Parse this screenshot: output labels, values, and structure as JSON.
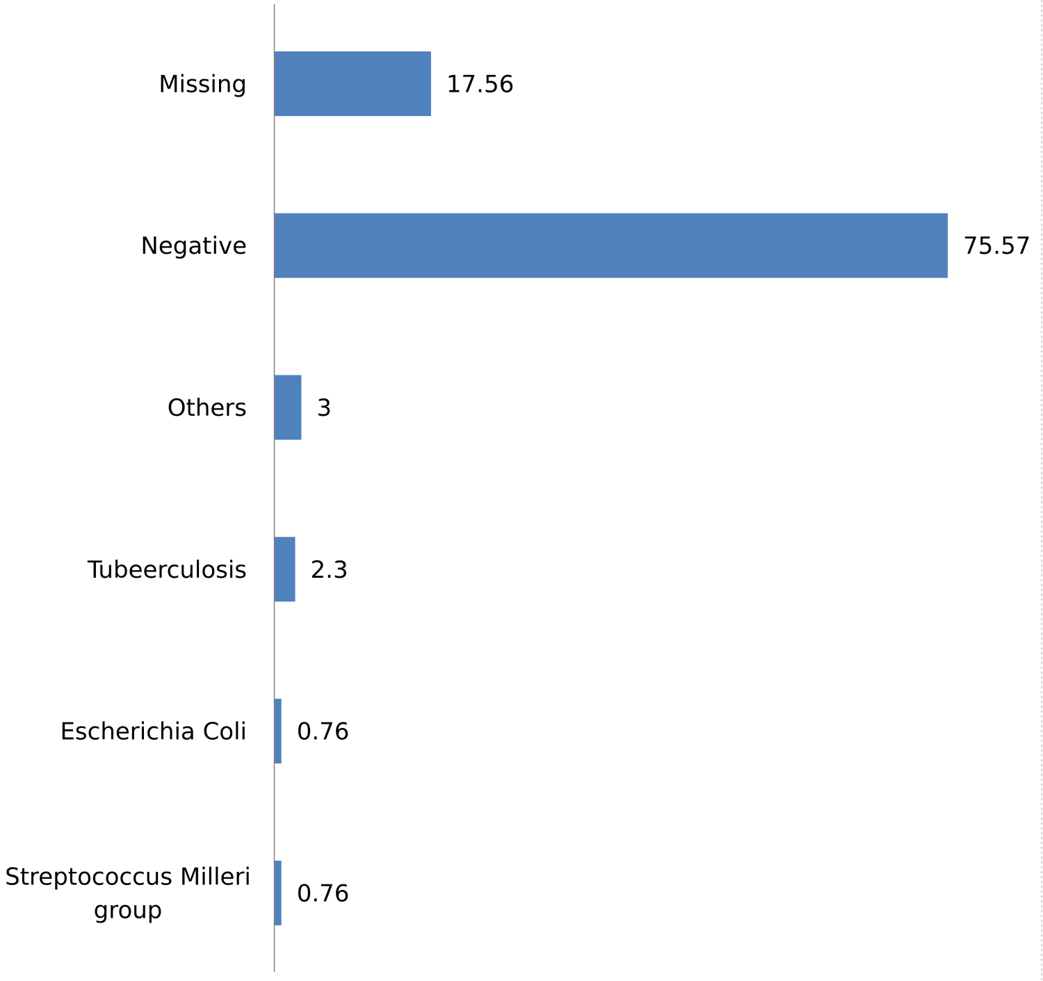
{
  "chart_data": {
    "type": "bar",
    "orientation": "horizontal",
    "categories": [
      [
        "Missing"
      ],
      [
        "Negative"
      ],
      [
        "Others"
      ],
      [
        "Tubeerculosis"
      ],
      [
        "Escherichia Coli"
      ],
      [
        "Streptococcus Milleri",
        "group"
      ]
    ],
    "values": [
      17.56,
      75.57,
      3,
      2.3,
      0.76,
      0.76
    ],
    "value_labels": [
      "17.56",
      "75.57",
      "3",
      "2.3",
      "0.76",
      "0.76"
    ],
    "title": "",
    "xlabel": "",
    "ylabel": "",
    "xlim": [
      0,
      84
    ],
    "grid": false,
    "legend": "none",
    "bar_color": "#4f81bd",
    "axis_color": "#808080"
  }
}
